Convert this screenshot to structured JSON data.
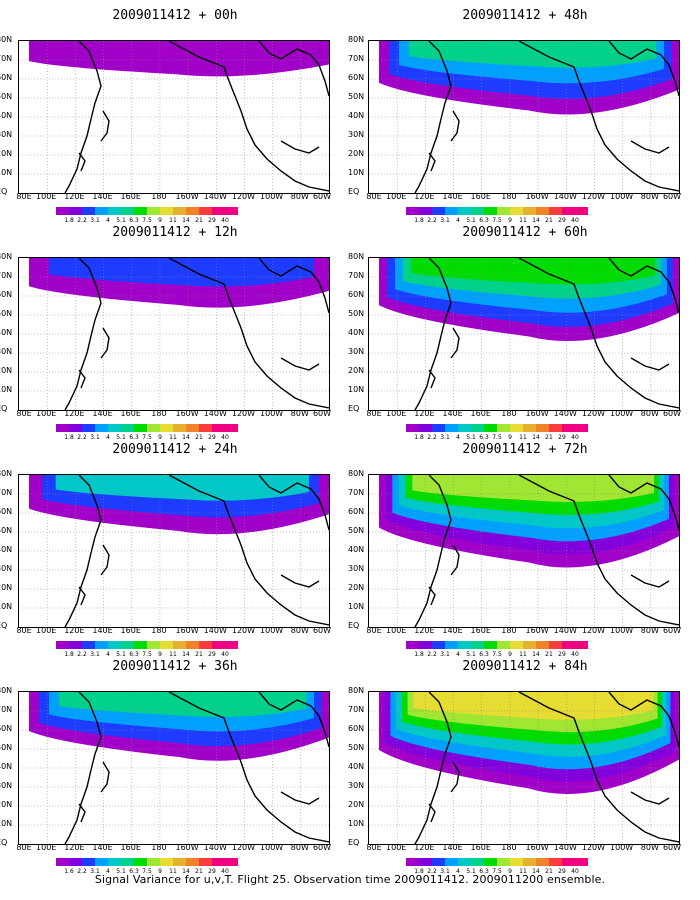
{
  "panels": [
    {
      "title": "2009011412 + 00h",
      "level": 0.15
    },
    {
      "title": "2009011412 + 48h",
      "level": 0.55
    },
    {
      "title": "2009011412 + 12h",
      "level": 0.3
    },
    {
      "title": "2009011412 + 60h",
      "level": 0.65
    },
    {
      "title": "2009011412 + 24h",
      "level": 0.4
    },
    {
      "title": "2009011412 + 72h",
      "level": 0.75
    },
    {
      "title": "2009011412 + 36h",
      "level": 0.5
    },
    {
      "title": "2009011412 + 84h",
      "level": 0.85
    }
  ],
  "lat_labels": [
    "80N",
    "70N",
    "60N",
    "50N",
    "40N",
    "30N",
    "20N",
    "10N",
    "EQ"
  ],
  "lon_labels": [
    "80E",
    "100E",
    "120E",
    "140E",
    "160E",
    "180",
    "160W",
    "140W",
    "120W",
    "100W",
    "80W",
    "60W"
  ],
  "colorbar": {
    "labels": [
      "1.8",
      "2.2",
      "3.1",
      "4",
      "5.1",
      "6.3",
      "7.5",
      "9",
      "11",
      "14",
      "21",
      "29",
      "40"
    ],
    "labels_alt": [
      "1.6",
      "2.2",
      "3.1",
      "4",
      "5.1",
      "6.3",
      "7.5",
      "9",
      "11",
      "14",
      "21",
      "29",
      "40"
    ],
    "colors": [
      "#a000c8",
      "#8200dc",
      "#1e3cff",
      "#00a0ff",
      "#00c8c8",
      "#00d28c",
      "#00dc00",
      "#a0e632",
      "#e6dc32",
      "#e6af2d",
      "#f08228",
      "#fa3c3c",
      "#f00082"
    ]
  },
  "caption": "Signal Variance for u,v,T. Flight 25. Observation time 2009011412. 2009011200 ensemble."
}
